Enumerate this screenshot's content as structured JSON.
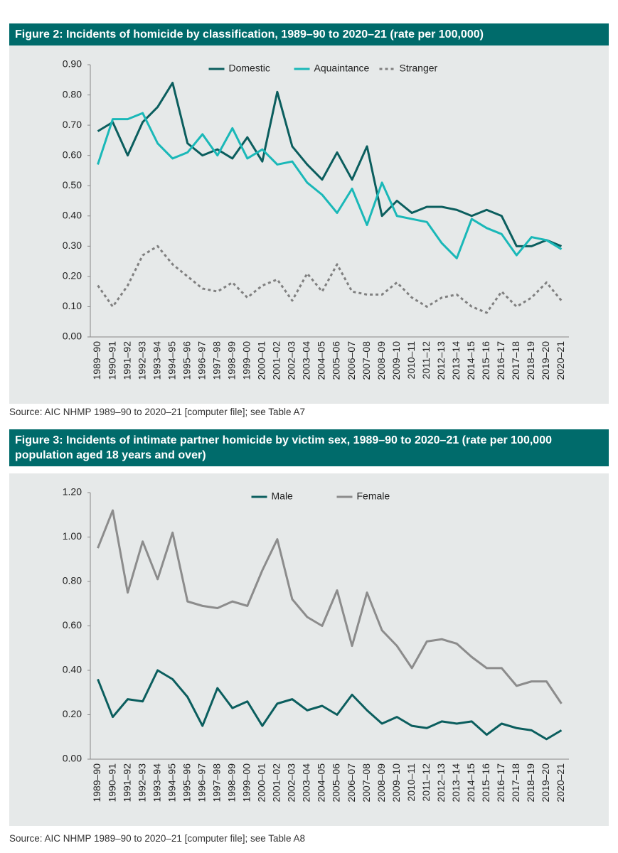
{
  "chart_data": [
    {
      "type": "line",
      "title": "Figure 2: Incidents of homicide by classification, 1989–90 to 2020–21 (rate per 100,000)",
      "source": "Source: AIC NHMP 1989–90 to 2020–21 [computer file]; see Table A7",
      "categories": [
        "1989–90",
        "1990–91",
        "1991–92",
        "1992–93",
        "1993–94",
        "1994–95",
        "1995–96",
        "1996–97",
        "1997–98",
        "1998–99",
        "1999–00",
        "2000–01",
        "2001–02",
        "2002–03",
        "2003–04",
        "2004–05",
        "2005–06",
        "2006–07",
        "2007–08",
        "2008–09",
        "2009–10",
        "2010–11",
        "2011–12",
        "2012–13",
        "2013–14",
        "2014–15",
        "2015–16",
        "2016–17",
        "2017–18",
        "2018–19",
        "2019–20",
        "2020–21"
      ],
      "series": [
        {
          "name": "Domestic",
          "color": "#0b5e5e",
          "dashed": false,
          "values": [
            0.68,
            0.71,
            0.6,
            0.71,
            0.76,
            0.84,
            0.64,
            0.6,
            0.62,
            0.59,
            0.66,
            0.58,
            0.81,
            0.63,
            0.57,
            0.52,
            0.61,
            0.52,
            0.63,
            0.4,
            0.45,
            0.41,
            0.43,
            0.43,
            0.42,
            0.4,
            0.42,
            0.4,
            0.3,
            0.3,
            0.32,
            0.3
          ]
        },
        {
          "name": "Aquaintance",
          "color": "#1ab8b8",
          "dashed": false,
          "values": [
            0.57,
            0.72,
            0.72,
            0.74,
            0.64,
            0.59,
            0.61,
            0.67,
            0.6,
            0.69,
            0.59,
            0.62,
            0.57,
            0.58,
            0.51,
            0.47,
            0.41,
            0.49,
            0.37,
            0.51,
            0.4,
            0.39,
            0.38,
            0.31,
            0.26,
            0.39,
            0.36,
            0.34,
            0.27,
            0.33,
            0.32,
            0.29
          ]
        },
        {
          "name": "Stranger",
          "color": "#808080",
          "dashed": true,
          "values": [
            0.17,
            0.1,
            0.17,
            0.27,
            0.3,
            0.24,
            0.2,
            0.16,
            0.15,
            0.18,
            0.13,
            0.17,
            0.19,
            0.12,
            0.21,
            0.15,
            0.24,
            0.15,
            0.14,
            0.14,
            0.18,
            0.13,
            0.1,
            0.13,
            0.14,
            0.1,
            0.08,
            0.15,
            0.1,
            0.13,
            0.18,
            0.12
          ]
        }
      ],
      "ylim": [
        0,
        0.9
      ],
      "yticks": [
        {
          "value": 0,
          "label": "0.00"
        },
        {
          "value": 0.1,
          "label": "0.10"
        },
        {
          "value": 0.2,
          "label": "0.20"
        },
        {
          "value": 0.3,
          "label": "0.30"
        },
        {
          "value": 0.4,
          "label": "0.40"
        },
        {
          "value": 0.5,
          "label": "0.50"
        },
        {
          "value": 0.6,
          "label": "0.60"
        },
        {
          "value": 0.7,
          "label": "0.70"
        },
        {
          "value": 0.8,
          "label": "0.80"
        },
        {
          "value": 0.9,
          "label": "0.90"
        }
      ],
      "grid": false,
      "legend": "top"
    },
    {
      "type": "line",
      "title": "Figure 3: Incidents of intimate partner homicide by victim sex, 1989–90 to 2020–21 (rate per 100,000 population aged 18 years and over)",
      "source": "Source: AIC NHMP 1989–90 to 2020–21 [computer file]; see Table A8",
      "categories": [
        "1989–90",
        "1990–91",
        "1991–92",
        "1992–93",
        "1993–94",
        "1994–95",
        "1995–96",
        "1996–97",
        "1997–98",
        "1998–99",
        "1999–00",
        "2000–01",
        "2001–02",
        "2002–03",
        "2003–04",
        "2004–05",
        "2005–06",
        "2006–07",
        "2007–08",
        "2008–09",
        "2009–10",
        "2010–11",
        "2011–12",
        "2012–13",
        "2013–14",
        "2014–15",
        "2015–16",
        "2016–17",
        "2017–18",
        "2018–19",
        "2019–20",
        "2020–21"
      ],
      "series": [
        {
          "name": "Male",
          "color": "#0b5e5e",
          "dashed": false,
          "values": [
            0.36,
            0.19,
            0.27,
            0.26,
            0.4,
            0.36,
            0.28,
            0.15,
            0.32,
            0.23,
            0.26,
            0.15,
            0.25,
            0.27,
            0.22,
            0.24,
            0.2,
            0.29,
            0.22,
            0.16,
            0.19,
            0.15,
            0.14,
            0.17,
            0.16,
            0.17,
            0.11,
            0.16,
            0.14,
            0.13,
            0.09,
            0.13
          ]
        },
        {
          "name": "Female",
          "color": "#8c8c8c",
          "dashed": false,
          "values": [
            0.95,
            1.12,
            0.75,
            0.98,
            0.81,
            1.02,
            0.71,
            0.69,
            0.68,
            0.71,
            0.69,
            0.85,
            0.99,
            0.72,
            0.64,
            0.6,
            0.76,
            0.51,
            0.75,
            0.58,
            0.51,
            0.41,
            0.53,
            0.54,
            0.52,
            0.46,
            0.41,
            0.41,
            0.33,
            0.35,
            0.35,
            0.25
          ]
        }
      ],
      "ylim": [
        0,
        1.2
      ],
      "yticks": [
        {
          "value": 0,
          "label": "0.00"
        },
        {
          "value": 0.2,
          "label": "0.20"
        },
        {
          "value": 0.4,
          "label": "0.40"
        },
        {
          "value": 0.6,
          "label": "0.60"
        },
        {
          "value": 0.8,
          "label": "0.80"
        },
        {
          "value": 1.0,
          "label": "1.00"
        },
        {
          "value": 1.2,
          "label": "1.20"
        }
      ],
      "grid": false,
      "legend": "top"
    }
  ]
}
